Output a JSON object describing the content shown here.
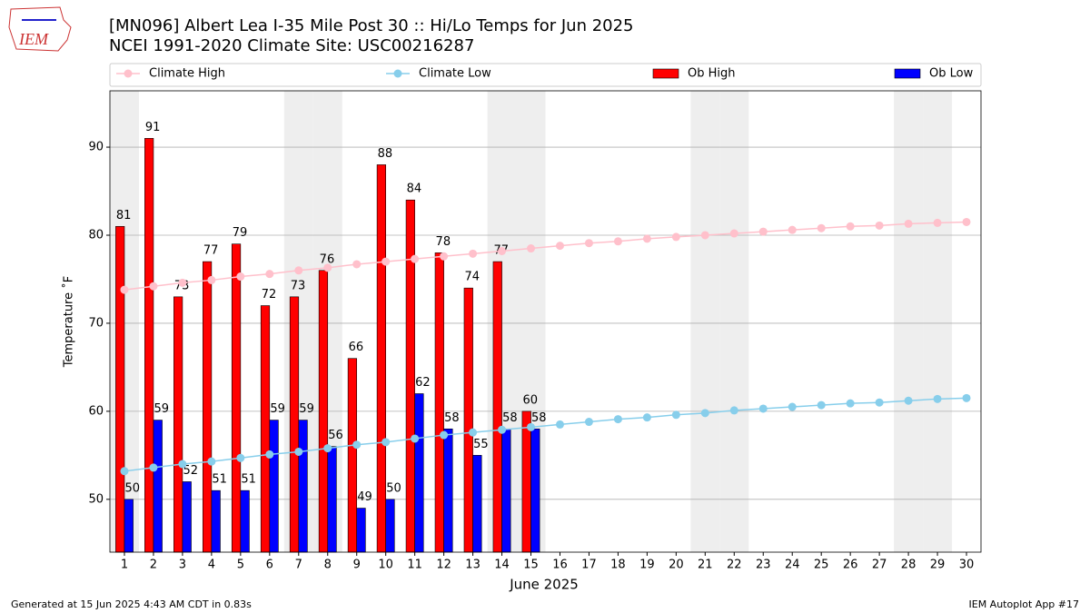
{
  "chart_data": {
    "type": "bar",
    "title": "[MN096] Albert Lea I-35 Mile Post 30 :: Hi/Lo Temps for Jun 2025",
    "subtitle": "NCEI 1991-2020 Climate Site: USC00216287",
    "logo_text": "IEM",
    "xlabel": "June 2025",
    "ylabel": "Temperature ˚F",
    "footer_left": "Generated at 15 Jun 2025 4:43 AM CDT in 0.83s",
    "footer_right": "IEM Autoplot App #17",
    "x": [
      1,
      2,
      3,
      4,
      5,
      6,
      7,
      8,
      9,
      10,
      11,
      12,
      13,
      14,
      15,
      16,
      17,
      18,
      19,
      20,
      21,
      22,
      23,
      24,
      25,
      26,
      27,
      28,
      29,
      30
    ],
    "xticks": [
      1,
      2,
      3,
      4,
      5,
      6,
      7,
      8,
      9,
      10,
      11,
      12,
      13,
      14,
      15,
      16,
      17,
      18,
      19,
      20,
      21,
      22,
      23,
      24,
      25,
      26,
      27,
      28,
      29,
      30
    ],
    "xlim": [
      0.5,
      30.5
    ],
    "ylim": [
      44,
      96.4
    ],
    "yticks": [
      50,
      60,
      70,
      80,
      90
    ],
    "grid": true,
    "shaded_days": [
      1,
      7,
      8,
      14,
      15,
      21,
      22,
      28,
      29
    ],
    "series": [
      {
        "name": "Climate High",
        "kind": "line",
        "color": "#ffc0cb",
        "values": [
          73.8,
          74.2,
          74.6,
          74.9,
          75.3,
          75.6,
          76.0,
          76.3,
          76.7,
          77.0,
          77.3,
          77.6,
          77.9,
          78.2,
          78.5,
          78.8,
          79.1,
          79.3,
          79.6,
          79.8,
          80.0,
          80.2,
          80.4,
          80.6,
          80.8,
          81.0,
          81.1,
          81.3,
          81.4,
          81.5
        ]
      },
      {
        "name": "Climate Low",
        "kind": "line",
        "color": "#87ceeb",
        "values": [
          53.2,
          53.6,
          54.0,
          54.3,
          54.7,
          55.1,
          55.4,
          55.8,
          56.2,
          56.5,
          56.9,
          57.3,
          57.6,
          57.9,
          58.2,
          58.5,
          58.8,
          59.1,
          59.3,
          59.6,
          59.8,
          60.1,
          60.3,
          60.5,
          60.7,
          60.9,
          61.0,
          61.2,
          61.4,
          61.5
        ]
      },
      {
        "name": "Ob High",
        "kind": "bar",
        "color": "#ff0000",
        "values": [
          81,
          91,
          73,
          77,
          79,
          72,
          73,
          76,
          66,
          88,
          84,
          78,
          74,
          77,
          60,
          null,
          null,
          null,
          null,
          null,
          null,
          null,
          null,
          null,
          null,
          null,
          null,
          null,
          null,
          null
        ]
      },
      {
        "name": "Ob Low",
        "kind": "bar",
        "color": "#0000ff",
        "values": [
          50,
          59,
          52,
          51,
          51,
          59,
          59,
          56,
          49,
          50,
          62,
          58,
          55,
          58,
          58,
          null,
          null,
          null,
          null,
          null,
          null,
          null,
          null,
          null,
          null,
          null,
          null,
          null,
          null,
          null
        ]
      }
    ]
  }
}
